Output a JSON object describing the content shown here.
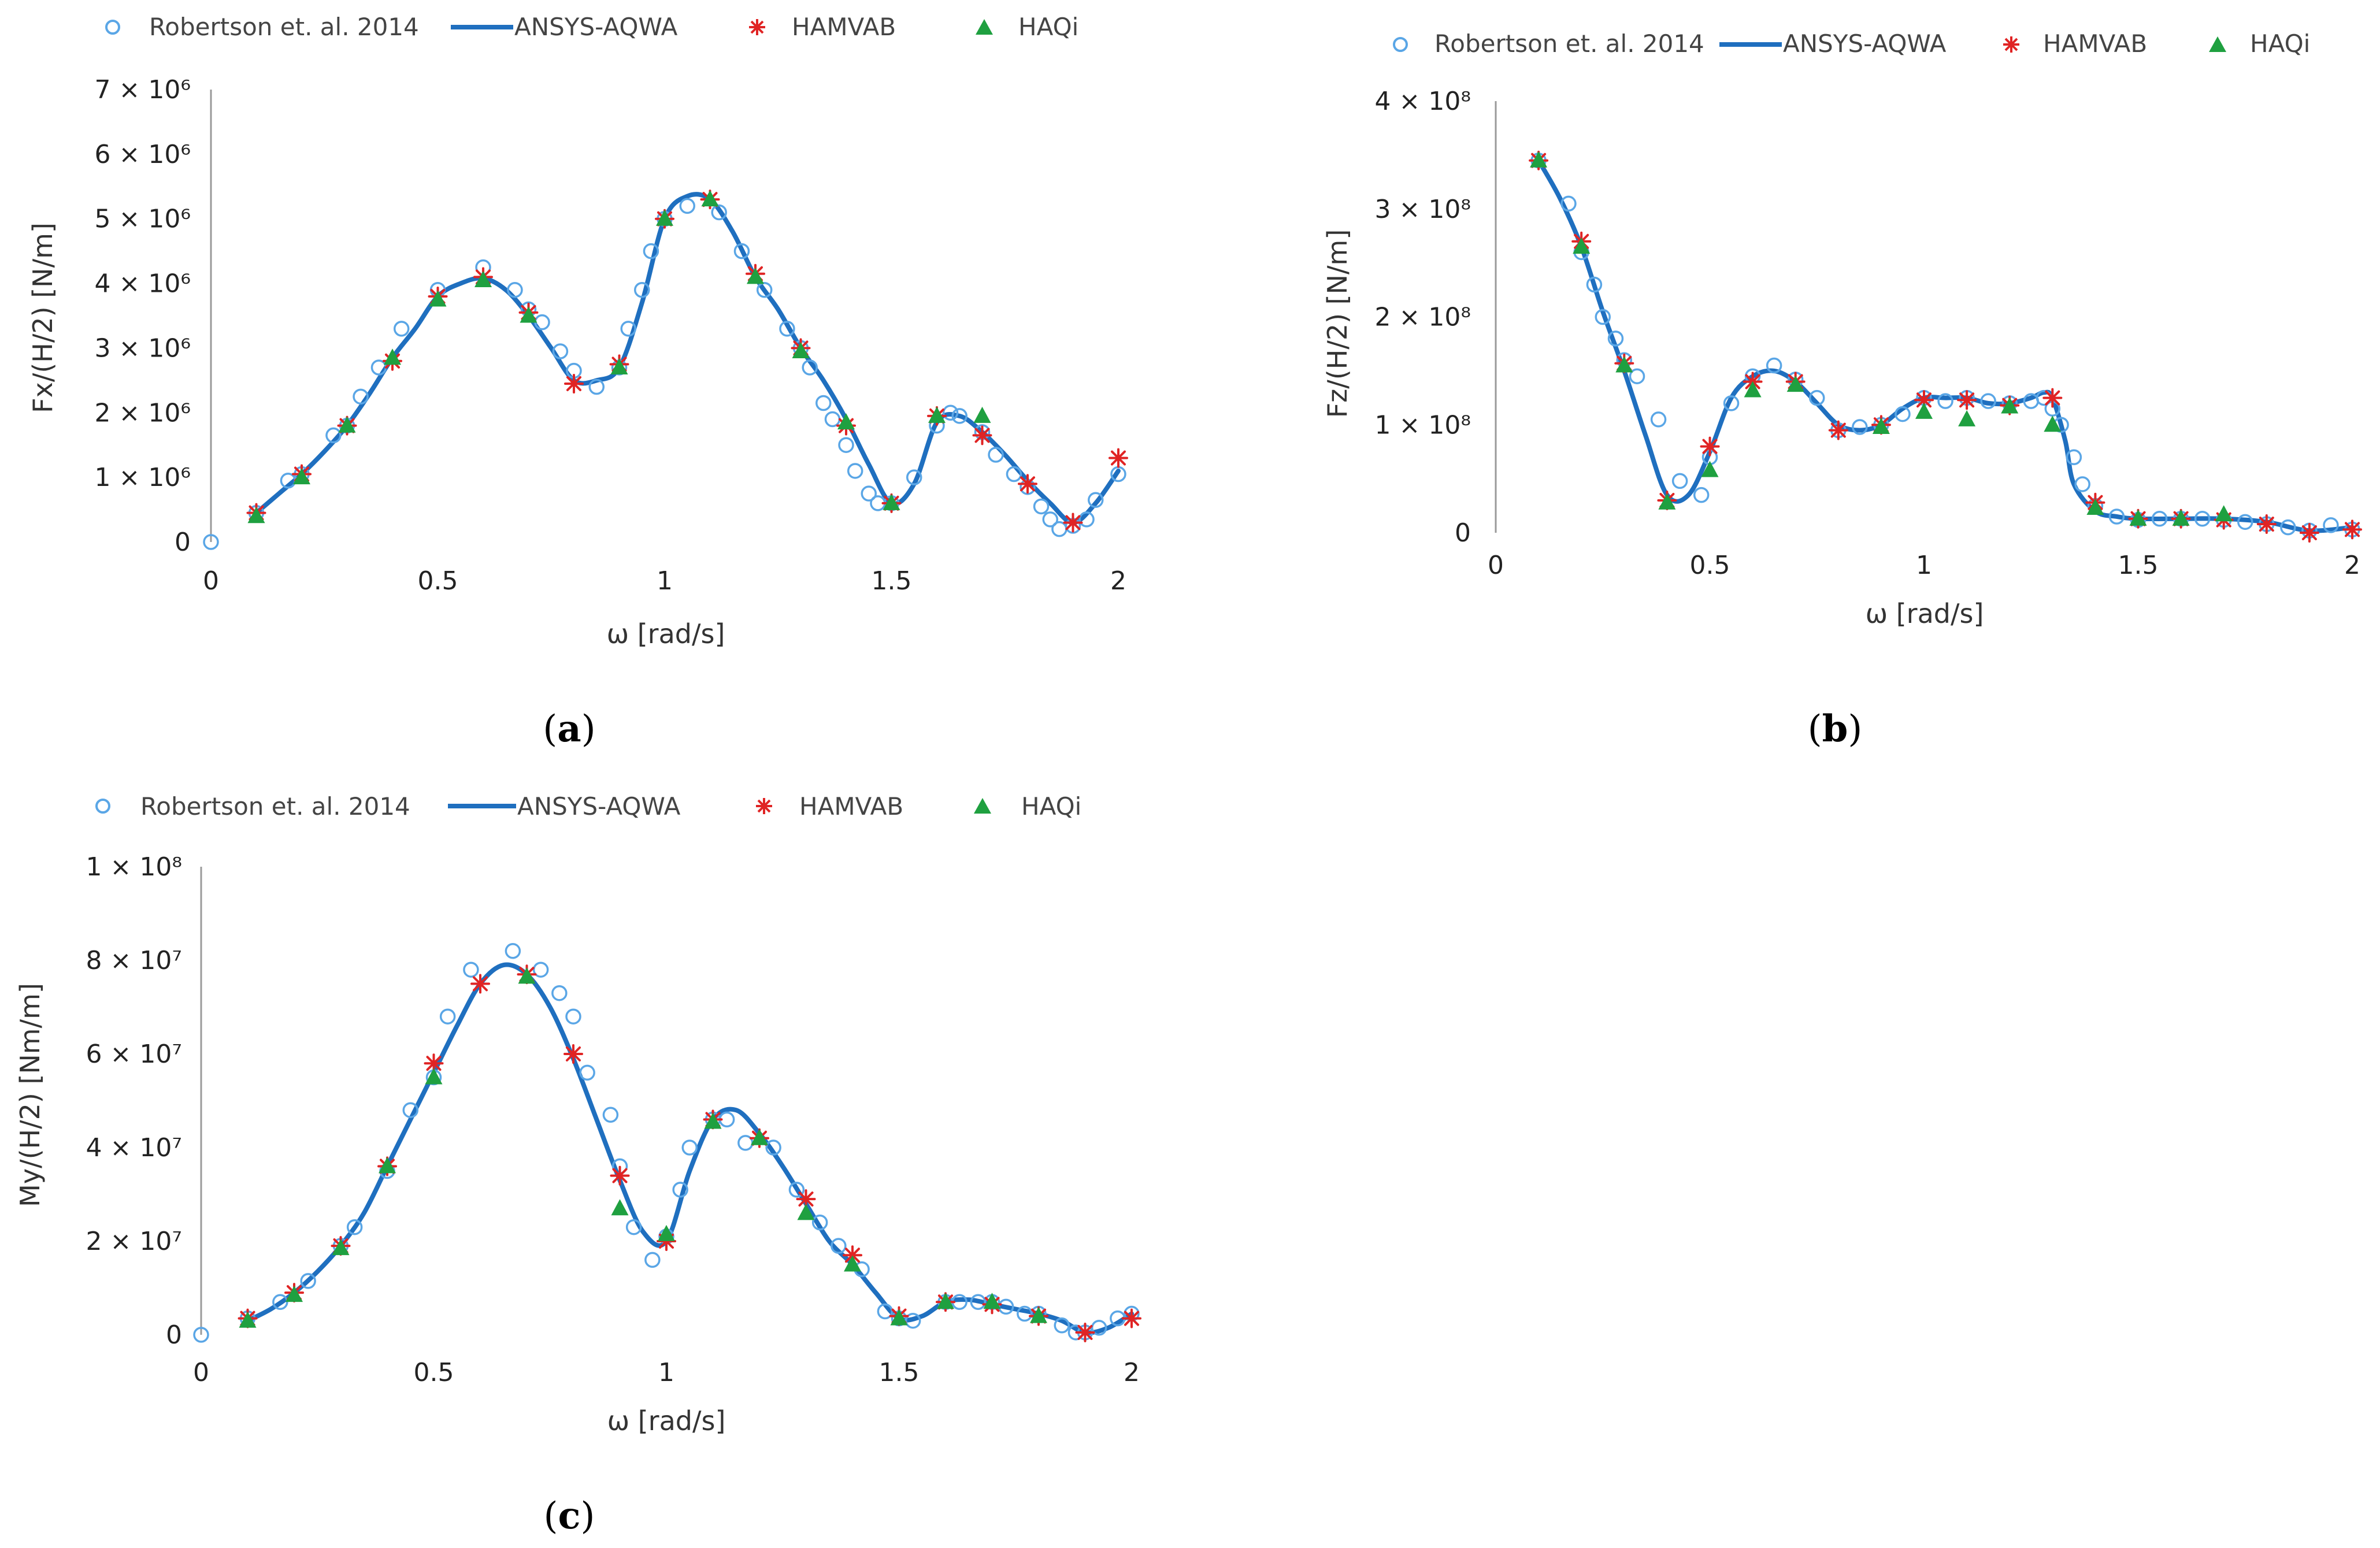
{
  "legend": {
    "robertson": "Robertson et. al. 2014",
    "aqwa": "ANSYS-AQWA",
    "hamvab": "HAMVAB",
    "haqi": "HAQi"
  },
  "colors": {
    "robertson": "#5aa6e6",
    "aqwa": "#1f6fbf",
    "hamvab": "#e02424",
    "haqi": "#1fa040"
  },
  "chart_data": [
    {
      "id": "a",
      "type": "line",
      "panel_label": "a",
      "xlabel": "ω [rad/s]",
      "ylabel": "Fx/(H/2) [N/m]",
      "xlim": [
        0,
        2
      ],
      "ylim": [
        0,
        7000000
      ],
      "xticks": [
        0,
        0.5,
        1,
        1.5,
        2
      ],
      "xtick_labels": [
        "0",
        "0.5",
        "1",
        "1.5",
        "2"
      ],
      "yticks": [
        0,
        1000000,
        2000000,
        3000000,
        4000000,
        5000000,
        6000000,
        7000000
      ],
      "ytick_labels": [
        "0",
        "1 × 10⁶",
        "2 × 10⁶",
        "3 × 10⁶",
        "4 × 10⁶",
        "5 × 10⁶",
        "6 × 10⁶",
        "7 × 10⁶"
      ],
      "series": [
        {
          "name": "ANSYS-AQWA",
          "kind": "line",
          "x": [
            0.1,
            0.15,
            0.2,
            0.25,
            0.3,
            0.35,
            0.4,
            0.45,
            0.5,
            0.55,
            0.6,
            0.65,
            0.7,
            0.75,
            0.8,
            0.85,
            0.9,
            0.95,
            1.0,
            1.05,
            1.1,
            1.15,
            1.2,
            1.25,
            1.3,
            1.35,
            1.4,
            1.45,
            1.5,
            1.55,
            1.6,
            1.65,
            1.7,
            1.75,
            1.8,
            1.85,
            1.9,
            1.95,
            2.0
          ],
          "y": [
            450000,
            750000,
            1050000,
            1400000,
            1800000,
            2300000,
            2850000,
            3300000,
            3800000,
            4000000,
            4080000,
            3900000,
            3500000,
            3000000,
            2500000,
            2500000,
            2700000,
            3700000,
            5000000,
            5350000,
            5300000,
            4800000,
            4100000,
            3600000,
            3000000,
            2500000,
            1900000,
            1200000,
            600000,
            900000,
            1850000,
            1950000,
            1700000,
            1350000,
            950000,
            600000,
            300000,
            600000,
            1100000
          ]
        },
        {
          "name": "Robertson et. al. 2014",
          "kind": "circle",
          "x": [
            0.0,
            0.1,
            0.17,
            0.2,
            0.27,
            0.3,
            0.33,
            0.37,
            0.42,
            0.5,
            0.6,
            0.67,
            0.7,
            0.73,
            0.77,
            0.8,
            0.85,
            0.9,
            0.92,
            0.95,
            0.97,
            1.0,
            1.05,
            1.12,
            1.17,
            1.22,
            1.27,
            1.3,
            1.32,
            1.35,
            1.37,
            1.4,
            1.42,
            1.45,
            1.47,
            1.5,
            1.55,
            1.6,
            1.63,
            1.65,
            1.7,
            1.73,
            1.77,
            1.8,
            1.83,
            1.85,
            1.87,
            1.9,
            1.93,
            1.95,
            2.0
          ],
          "y": [
            0,
            450000,
            950000,
            1050000,
            1650000,
            1800000,
            2250000,
            2700000,
            3300000,
            3900000,
            4250000,
            3900000,
            3600000,
            3400000,
            2950000,
            2650000,
            2400000,
            2700000,
            3300000,
            3900000,
            4500000,
            5000000,
            5200000,
            5100000,
            4500000,
            3900000,
            3300000,
            3000000,
            2700000,
            2150000,
            1900000,
            1500000,
            1100000,
            750000,
            600000,
            600000,
            1000000,
            1800000,
            2000000,
            1950000,
            1700000,
            1350000,
            1050000,
            850000,
            550000,
            350000,
            200000,
            250000,
            350000,
            650000,
            1050000
          ]
        },
        {
          "name": "HAMVAB",
          "kind": "star",
          "x": [
            0.1,
            0.2,
            0.3,
            0.4,
            0.5,
            0.6,
            0.7,
            0.8,
            0.9,
            1.0,
            1.1,
            1.2,
            1.3,
            1.4,
            1.5,
            1.6,
            1.7,
            1.8,
            1.9,
            2.0
          ],
          "y": [
            450000,
            1050000,
            1800000,
            2800000,
            3800000,
            4100000,
            3550000,
            2450000,
            2750000,
            5000000,
            5300000,
            4150000,
            3000000,
            1800000,
            600000,
            1950000,
            1650000,
            900000,
            300000,
            1300000
          ]
        },
        {
          "name": "HAQi",
          "kind": "triangle",
          "x": [
            0.1,
            0.2,
            0.3,
            0.4,
            0.5,
            0.6,
            0.7,
            0.9,
            1.0,
            1.1,
            1.2,
            1.3,
            1.4,
            1.5,
            1.6,
            1.7
          ],
          "y": [
            400000,
            1000000,
            1800000,
            2850000,
            3750000,
            4050000,
            3500000,
            2700000,
            5000000,
            5300000,
            4100000,
            2950000,
            1850000,
            600000,
            1950000,
            1950000
          ]
        }
      ]
    },
    {
      "id": "b",
      "type": "line",
      "panel_label": "b",
      "xlabel": "ω [rad/s]",
      "ylabel": "Fz/(H/2) [N/m]",
      "xlim": [
        0,
        2
      ],
      "ylim": [
        0,
        400000000
      ],
      "xticks": [
        0,
        0.5,
        1,
        1.5,
        2
      ],
      "xtick_labels": [
        "0",
        "0.5",
        "1",
        "1.5",
        "2"
      ],
      "yticks": [
        0,
        100000000,
        200000000,
        300000000,
        400000000
      ],
      "ytick_labels": [
        "0",
        "1 × 10⁸",
        "2 × 10⁸",
        "3 × 10⁸",
        "4 × 10⁸"
      ],
      "series": [
        {
          "name": "ANSYS-AQWA",
          "kind": "line",
          "x": [
            0.1,
            0.15,
            0.2,
            0.25,
            0.3,
            0.35,
            0.4,
            0.45,
            0.5,
            0.55,
            0.6,
            0.65,
            0.7,
            0.75,
            0.8,
            0.85,
            0.9,
            0.95,
            1.0,
            1.05,
            1.1,
            1.15,
            1.2,
            1.25,
            1.28,
            1.3,
            1.33,
            1.35,
            1.4,
            1.45,
            1.5,
            1.6,
            1.7,
            1.8,
            1.9,
            2.0
          ],
          "y": [
            345000000,
            310000000,
            265000000,
            205000000,
            150000000,
            90000000,
            35000000,
            35000000,
            75000000,
            125000000,
            145000000,
            150000000,
            140000000,
            120000000,
            100000000,
            95000000,
            100000000,
            115000000,
            125000000,
            125000000,
            125000000,
            120000000,
            120000000,
            125000000,
            130000000,
            125000000,
            85000000,
            45000000,
            20000000,
            15000000,
            13000000,
            13000000,
            13000000,
            10000000,
            2000000,
            5000000
          ]
        },
        {
          "name": "Robertson et. al. 2014",
          "kind": "circle",
          "x": [
            0.1,
            0.17,
            0.2,
            0.23,
            0.25,
            0.28,
            0.3,
            0.33,
            0.38,
            0.43,
            0.48,
            0.5,
            0.55,
            0.6,
            0.65,
            0.7,
            0.75,
            0.8,
            0.85,
            0.9,
            0.95,
            1.0,
            1.05,
            1.1,
            1.15,
            1.2,
            1.25,
            1.28,
            1.3,
            1.32,
            1.35,
            1.37,
            1.4,
            1.45,
            1.5,
            1.55,
            1.6,
            1.65,
            1.7,
            1.75,
            1.8,
            1.85,
            1.9,
            1.95,
            2.0
          ],
          "y": [
            345000000,
            305000000,
            260000000,
            230000000,
            200000000,
            180000000,
            160000000,
            145000000,
            105000000,
            48000000,
            35000000,
            70000000,
            120000000,
            145000000,
            155000000,
            142000000,
            125000000,
            95000000,
            98000000,
            100000000,
            110000000,
            125000000,
            122000000,
            125000000,
            122000000,
            120000000,
            122000000,
            125000000,
            115000000,
            100000000,
            70000000,
            45000000,
            25000000,
            15000000,
            12000000,
            13000000,
            13000000,
            13000000,
            12000000,
            10000000,
            8000000,
            5000000,
            2000000,
            7000000,
            3000000
          ]
        },
        {
          "name": "HAMVAB",
          "kind": "star",
          "x": [
            0.1,
            0.2,
            0.3,
            0.4,
            0.5,
            0.6,
            0.7,
            0.8,
            0.9,
            1.0,
            1.1,
            1.2,
            1.3,
            1.4,
            1.5,
            1.6,
            1.7,
            1.8,
            1.9,
            2.0
          ],
          "y": [
            345000000,
            270000000,
            157000000,
            30000000,
            80000000,
            140000000,
            140000000,
            95000000,
            100000000,
            123000000,
            123000000,
            118000000,
            125000000,
            28000000,
            13000000,
            13000000,
            12000000,
            8000000,
            0,
            3000000
          ]
        },
        {
          "name": "HAQi",
          "kind": "triangle",
          "x": [
            0.1,
            0.2,
            0.3,
            0.4,
            0.5,
            0.6,
            0.7,
            0.9,
            1.0,
            1.1,
            1.2,
            1.3,
            1.4,
            1.5,
            1.6,
            1.7
          ],
          "y": [
            345000000,
            265000000,
            155000000,
            28000000,
            58000000,
            132000000,
            137000000,
            98000000,
            112000000,
            105000000,
            117000000,
            100000000,
            23000000,
            13000000,
            13000000,
            17000000
          ]
        }
      ]
    },
    {
      "id": "c",
      "type": "line",
      "panel_label": "c",
      "xlabel": "ω [rad/s]",
      "ylabel": "My/(H/2) [Nm/m]",
      "xlim": [
        0,
        2
      ],
      "ylim": [
        0,
        100000000
      ],
      "xticks": [
        0,
        0.5,
        1,
        1.5,
        2
      ],
      "xtick_labels": [
        "0",
        "0.5",
        "1",
        "1.5",
        "2"
      ],
      "yticks": [
        0,
        20000000,
        40000000,
        60000000,
        80000000,
        100000000
      ],
      "ytick_labels": [
        "0",
        "2 × 10⁷",
        "4 × 10⁷",
        "6 × 10⁷",
        "8 × 10⁷",
        "1 × 10⁸"
      ],
      "series": [
        {
          "name": "ANSYS-AQWA",
          "kind": "line",
          "x": [
            0.1,
            0.15,
            0.2,
            0.25,
            0.3,
            0.35,
            0.4,
            0.45,
            0.5,
            0.55,
            0.6,
            0.65,
            0.7,
            0.75,
            0.8,
            0.85,
            0.9,
            0.95,
            1.0,
            1.05,
            1.1,
            1.15,
            1.2,
            1.25,
            1.3,
            1.35,
            1.4,
            1.45,
            1.5,
            1.55,
            1.6,
            1.65,
            1.7,
            1.75,
            1.8,
            1.85,
            1.9,
            1.95,
            2.0
          ],
          "y": [
            3000000,
            5500000,
            9000000,
            13500000,
            19000000,
            26000000,
            36000000,
            46000000,
            56000000,
            66000000,
            75000000,
            79000000,
            77000000,
            70000000,
            59000000,
            46000000,
            33000000,
            22000000,
            20000000,
            35000000,
            46000000,
            48000000,
            43000000,
            36000000,
            28000000,
            20000000,
            15000000,
            9000000,
            3500000,
            4000000,
            7000000,
            7500000,
            6500000,
            5500000,
            4500000,
            3000000,
            500000,
            1500000,
            4500000
          ]
        },
        {
          "name": "Robertson et. al. 2014",
          "kind": "circle",
          "x": [
            0.0,
            0.1,
            0.17,
            0.23,
            0.3,
            0.33,
            0.4,
            0.45,
            0.5,
            0.53,
            0.58,
            0.67,
            0.73,
            0.77,
            0.8,
            0.83,
            0.88,
            0.9,
            0.93,
            0.97,
            1.0,
            1.03,
            1.05,
            1.1,
            1.13,
            1.17,
            1.23,
            1.28,
            1.33,
            1.37,
            1.42,
            1.47,
            1.5,
            1.53,
            1.6,
            1.63,
            1.67,
            1.7,
            1.73,
            1.77,
            1.8,
            1.85,
            1.88,
            1.9,
            1.93,
            1.97,
            2.0
          ],
          "y": [
            0,
            3500000,
            7000000,
            11500000,
            19000000,
            23000000,
            35000000,
            48000000,
            55000000,
            68000000,
            78000000,
            82000000,
            78000000,
            73000000,
            68000000,
            56000000,
            47000000,
            36000000,
            23000000,
            16000000,
            21000000,
            31000000,
            40000000,
            46000000,
            46000000,
            41000000,
            40000000,
            31000000,
            24000000,
            19000000,
            14000000,
            5000000,
            3500000,
            3000000,
            7000000,
            7000000,
            7000000,
            7000000,
            6000000,
            4500000,
            4500000,
            2000000,
            500000,
            500000,
            1500000,
            3500000,
            4500000
          ]
        },
        {
          "name": "HAMVAB",
          "kind": "star",
          "x": [
            0.1,
            0.2,
            0.3,
            0.4,
            0.5,
            0.6,
            0.7,
            0.8,
            0.9,
            1.0,
            1.1,
            1.2,
            1.3,
            1.4,
            1.5,
            1.6,
            1.7,
            1.8,
            1.9,
            2.0
          ],
          "y": [
            3500000,
            9000000,
            19000000,
            36000000,
            58000000,
            75000000,
            77000000,
            60000000,
            34000000,
            20000000,
            46000000,
            42000000,
            29000000,
            17000000,
            4000000,
            7000000,
            6500000,
            4000000,
            500000,
            3500000
          ]
        },
        {
          "name": "HAQi",
          "kind": "triangle",
          "x": [
            0.1,
            0.2,
            0.3,
            0.4,
            0.5,
            0.7,
            0.9,
            1.0,
            1.1,
            1.2,
            1.3,
            1.4,
            1.5,
            1.6,
            1.7,
            1.8
          ],
          "y": [
            3000000,
            8500000,
            18500000,
            36000000,
            55000000,
            76500000,
            27000000,
            21500000,
            45500000,
            42000000,
            26000000,
            15000000,
            3500000,
            7000000,
            7000000,
            4000000
          ]
        }
      ]
    }
  ]
}
